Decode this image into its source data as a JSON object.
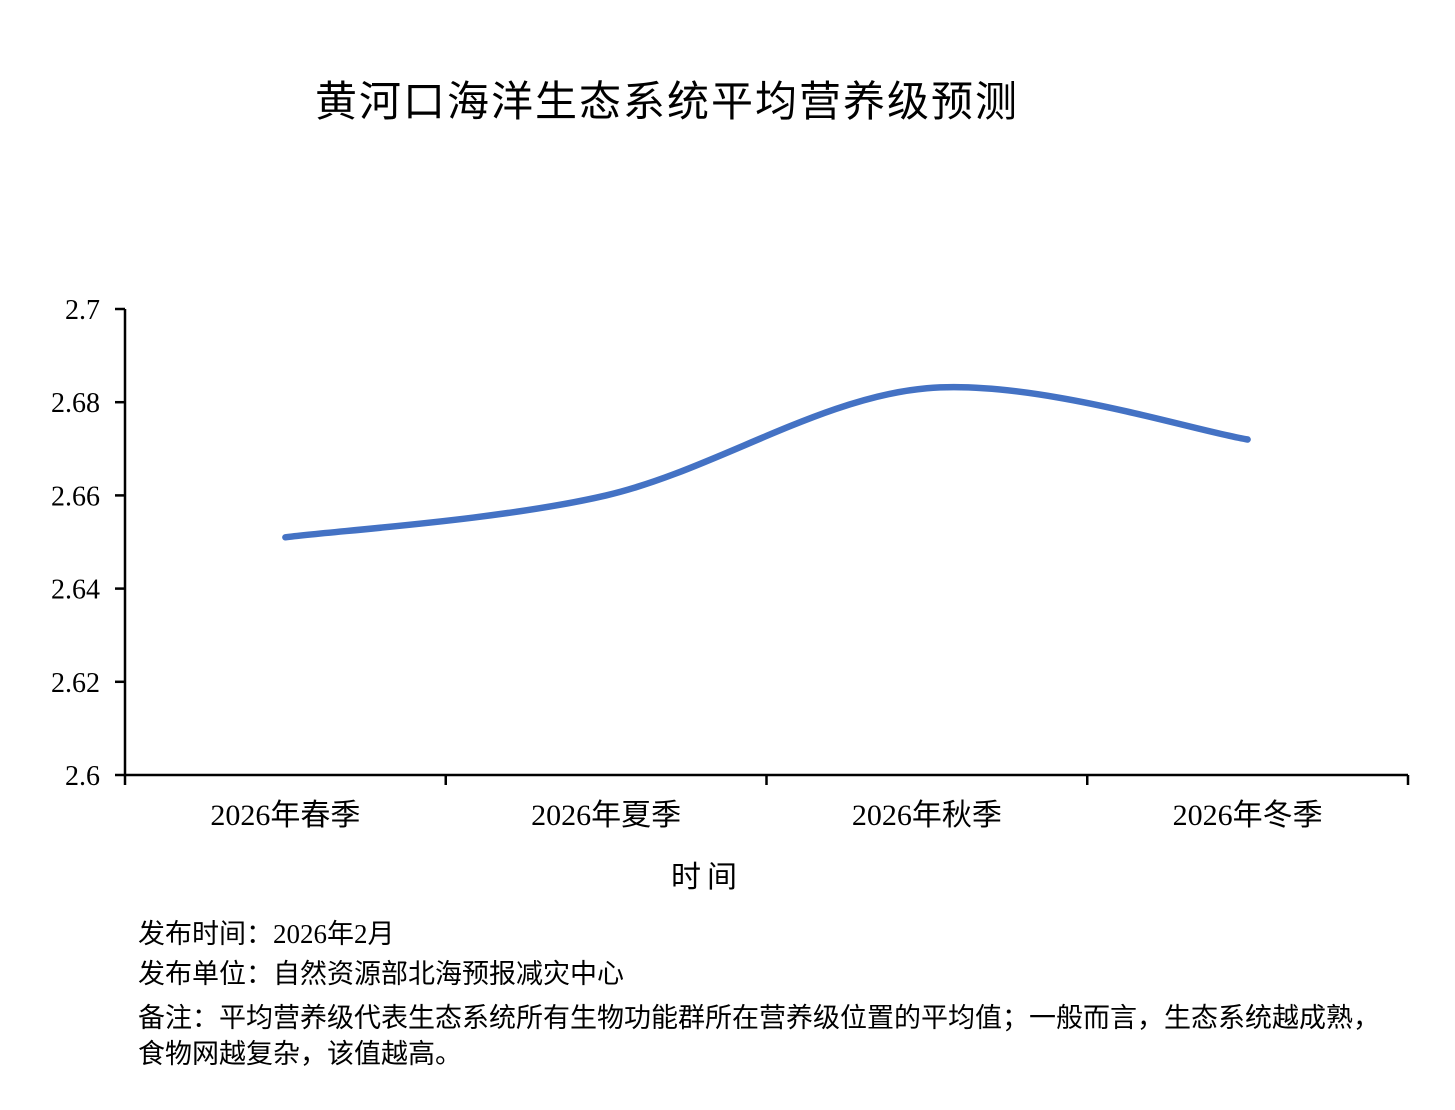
{
  "chart_data": {
    "type": "line",
    "title": "黄河口海洋生态系统平均营养级预测",
    "xlabel": "时间",
    "ylabel": "",
    "categories": [
      "2026年春季",
      "2026年夏季",
      "2026年秋季",
      "2026年冬季"
    ],
    "values": [
      2.651,
      2.66,
      2.683,
      2.672
    ],
    "ylim": [
      2.6,
      2.7
    ],
    "y_ticks": [
      "2.6",
      "2.62",
      "2.64",
      "2.66",
      "2.68",
      "2.7"
    ],
    "grid": false,
    "legend": false,
    "smooth": true,
    "line_color": "#4472C4",
    "axis_color": "#000000"
  },
  "footer": {
    "lines": [
      "发布时间：2026年2月",
      "发布单位：自然资源部北海预报减灾中心",
      "备注：平均营养级代表生态系统所有生物功能群所在营养级位置的平均值；一般而言，生态系统越成熟，食物网越复杂，该值越高。"
    ]
  }
}
